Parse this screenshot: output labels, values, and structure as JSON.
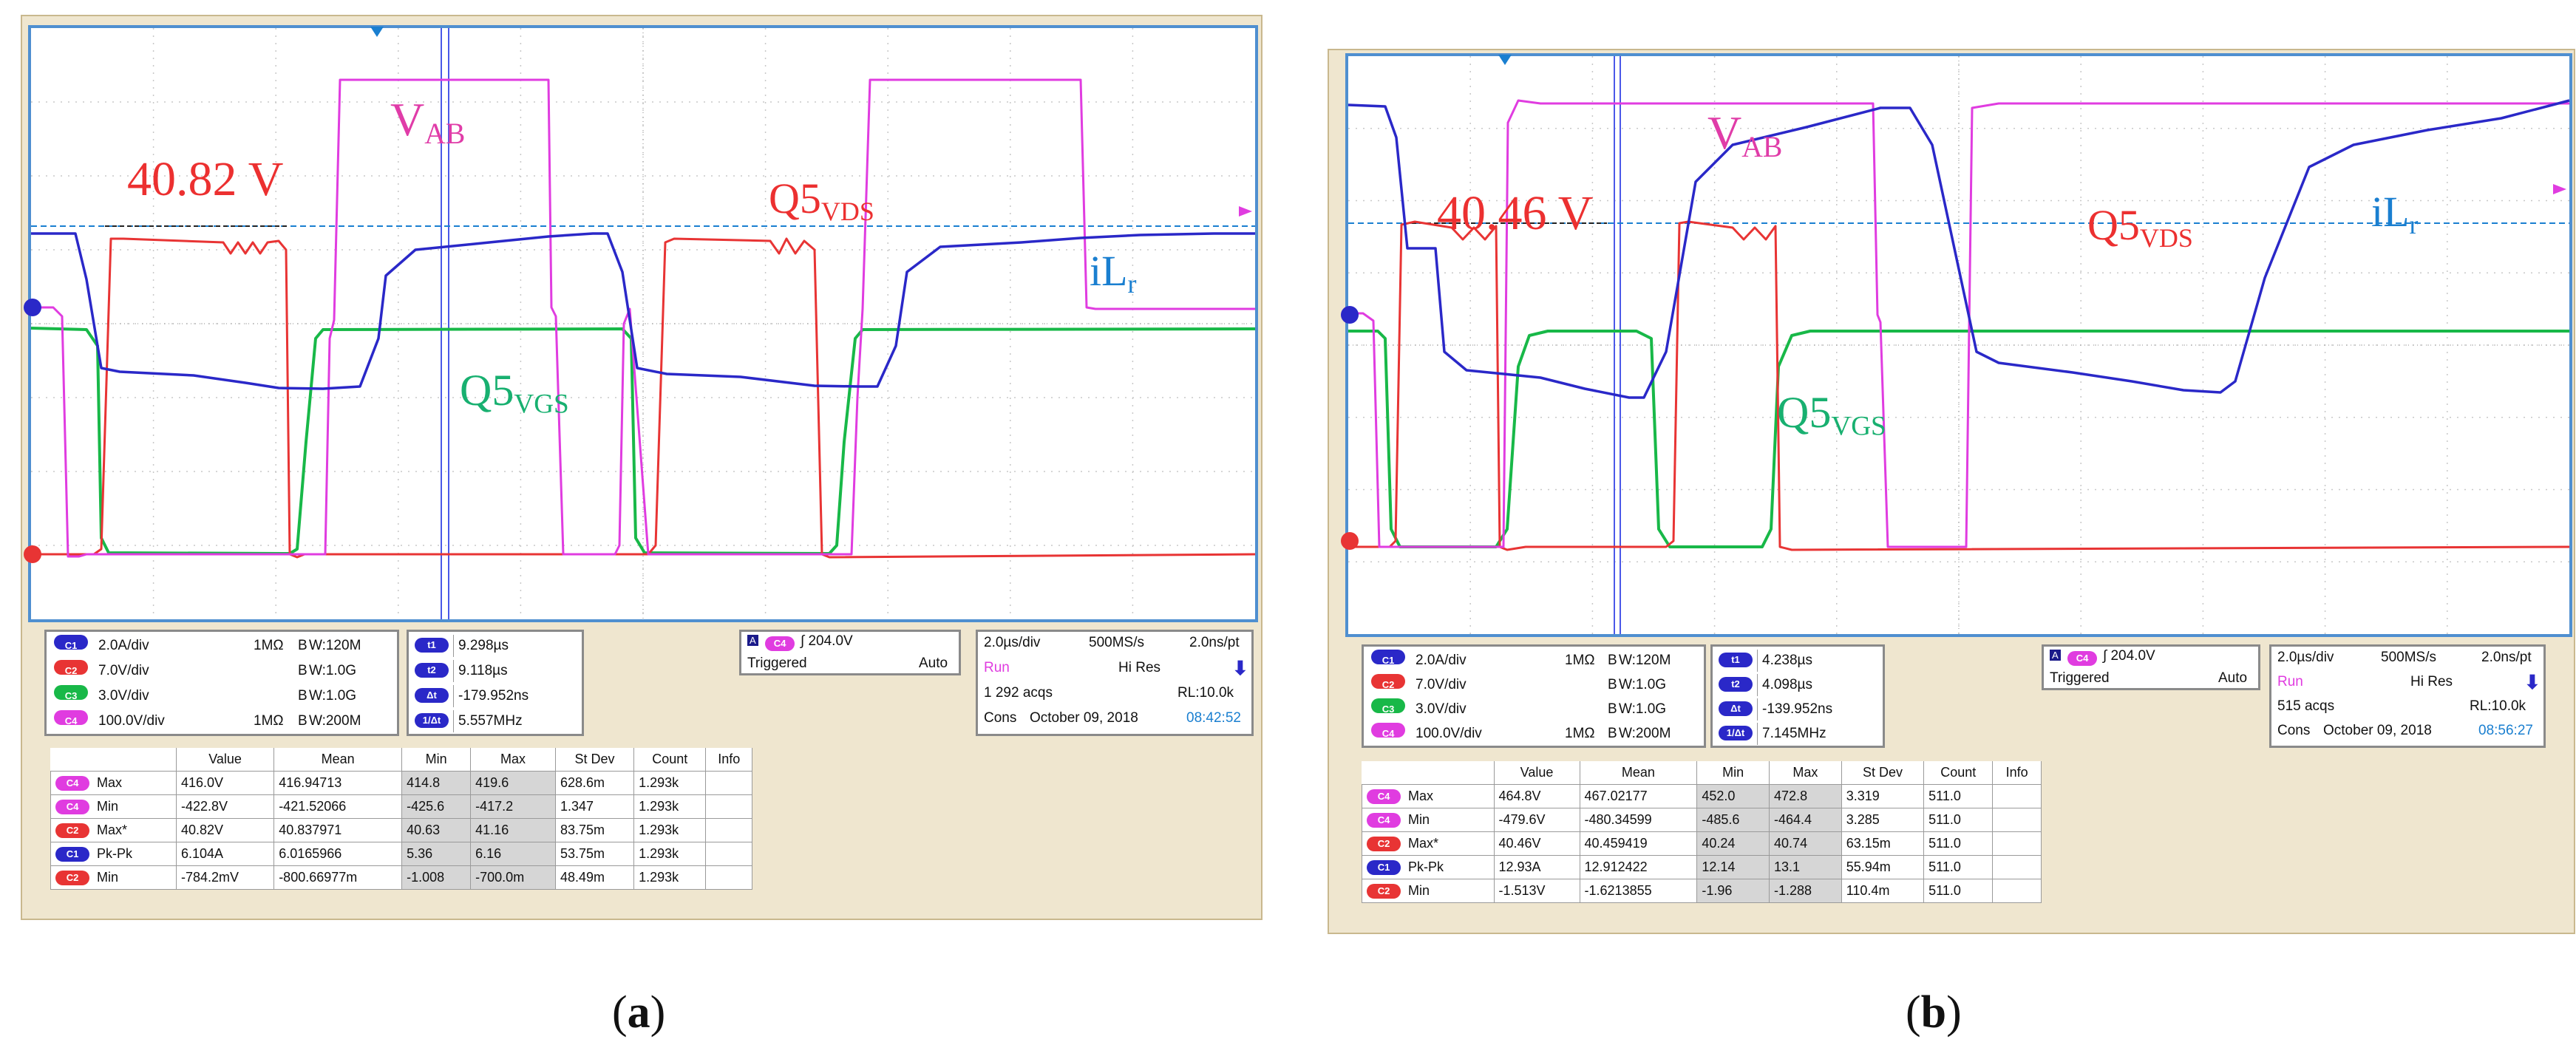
{
  "screenshots": [
    {
      "caption": "a",
      "labels": {
        "vab": "V",
        "vab_sub": "AB",
        "q5vds": "Q5",
        "q5vds_sub": "VDS",
        "ilr": "iL",
        "ilr_sub": "r",
        "q5vgs": "Q5",
        "q5vgs_sub": "VGS"
      },
      "measured_voltage": "40.82 V",
      "channels": [
        {
          "ch": "C1",
          "scale": "2.0A/div",
          "imp": "1MΩ",
          "bw": "W:120M",
          "color": "#2a28c8"
        },
        {
          "ch": "C2",
          "scale": "7.0V/div",
          "imp": "",
          "bw": "W:1.0G",
          "color": "#e83434"
        },
        {
          "ch": "C3",
          "scale": "3.0V/div",
          "imp": "",
          "bw": "W:1.0G",
          "color": "#18b848"
        },
        {
          "ch": "C4",
          "scale": "100.0V/div",
          "imp": "1MΩ",
          "bw": "W:200M",
          "color": "#e03ce0"
        }
      ],
      "cursors": [
        {
          "key": "t1",
          "value": "9.298µs"
        },
        {
          "key": "t2",
          "value": "9.118µs"
        },
        {
          "key": "Δt",
          "value": "-179.952ns"
        },
        {
          "key": "1/Δt",
          "value": "5.557MHz"
        }
      ],
      "trigger": {
        "ch": "C4",
        "level": "204.0V",
        "state": "Triggered",
        "mode": "Auto"
      },
      "timebase": {
        "div": "2.0µs/div",
        "rate": "500MS/s",
        "pt": "2.0ns/pt",
        "status": "Run",
        "res": "Hi Res",
        "acqs": "1 292 acqs",
        "rl": "RL:10.0k",
        "cons": "Cons",
        "date": "October 09, 2018",
        "time": "08:42:52"
      },
      "measurements": {
        "headers": [
          "Value",
          "Mean",
          "Min",
          "Max",
          "St Dev",
          "Count",
          "Info"
        ],
        "rows": [
          {
            "ch": "C4",
            "name": "Max",
            "value": "416.0V",
            "mean": "416.94713",
            "min": "414.8",
            "max": "419.6",
            "stdev": "628.6m",
            "count": "1.293k",
            "info": ""
          },
          {
            "ch": "C4",
            "name": "Min",
            "value": "-422.8V",
            "mean": "-421.52066",
            "min": "-425.6",
            "max": "-417.2",
            "stdev": "1.347",
            "count": "1.293k",
            "info": ""
          },
          {
            "ch": "C2",
            "name": "Max*",
            "value": "40.82V",
            "mean": "40.837971",
            "min": "40.63",
            "max": "41.16",
            "stdev": "83.75m",
            "count": "1.293k",
            "info": ""
          },
          {
            "ch": "C1",
            "name": "Pk-Pk",
            "value": "6.104A",
            "mean": "6.0165966",
            "min": "5.36",
            "max": "6.16",
            "stdev": "53.75m",
            "count": "1.293k",
            "info": ""
          },
          {
            "ch": "C2",
            "name": "Min",
            "value": "-784.2mV",
            "mean": "-800.66977m",
            "min": "-1.008",
            "max": "-700.0m",
            "stdev": "48.49m",
            "count": "1.293k",
            "info": ""
          }
        ]
      }
    },
    {
      "caption": "b",
      "labels": {
        "vab": "V",
        "vab_sub": "AB",
        "q5vds": "Q5",
        "q5vds_sub": "VDS",
        "ilr": "iL",
        "ilr_sub": "r",
        "q5vgs": "Q5",
        "q5vgs_sub": "VGS"
      },
      "measured_voltage": "40.46 V",
      "channels": [
        {
          "ch": "C1",
          "scale": "2.0A/div",
          "imp": "1MΩ",
          "bw": "W:120M",
          "color": "#2a28c8"
        },
        {
          "ch": "C2",
          "scale": "7.0V/div",
          "imp": "",
          "bw": "W:1.0G",
          "color": "#e83434"
        },
        {
          "ch": "C3",
          "scale": "3.0V/div",
          "imp": "",
          "bw": "W:1.0G",
          "color": "#18b848"
        },
        {
          "ch": "C4",
          "scale": "100.0V/div",
          "imp": "1MΩ",
          "bw": "W:200M",
          "color": "#e03ce0"
        }
      ],
      "cursors": [
        {
          "key": "t1",
          "value": "4.238µs"
        },
        {
          "key": "t2",
          "value": "4.098µs"
        },
        {
          "key": "Δt",
          "value": "-139.952ns"
        },
        {
          "key": "1/Δt",
          "value": "7.145MHz"
        }
      ],
      "trigger": {
        "ch": "C4",
        "level": "204.0V",
        "state": "Triggered",
        "mode": "Auto"
      },
      "timebase": {
        "div": "2.0µs/div",
        "rate": "500MS/s",
        "pt": "2.0ns/pt",
        "status": "Run",
        "res": "Hi Res",
        "acqs": "515 acqs",
        "rl": "RL:10.0k",
        "cons": "Cons",
        "date": "October 09, 2018",
        "time": "08:56:27"
      },
      "measurements": {
        "headers": [
          "Value",
          "Mean",
          "Min",
          "Max",
          "St Dev",
          "Count",
          "Info"
        ],
        "rows": [
          {
            "ch": "C4",
            "name": "Max",
            "value": "464.8V",
            "mean": "467.02177",
            "min": "452.0",
            "max": "472.8",
            "stdev": "3.319",
            "count": "511.0",
            "info": ""
          },
          {
            "ch": "C4",
            "name": "Min",
            "value": "-479.6V",
            "mean": "-480.34599",
            "min": "-485.6",
            "max": "-464.4",
            "stdev": "3.285",
            "count": "511.0",
            "info": ""
          },
          {
            "ch": "C2",
            "name": "Max*",
            "value": "40.46V",
            "mean": "40.459419",
            "min": "40.24",
            "max": "40.74",
            "stdev": "63.15m",
            "count": "511.0",
            "info": ""
          },
          {
            "ch": "C1",
            "name": "Pk-Pk",
            "value": "12.93A",
            "mean": "12.912422",
            "min": "12.14",
            "max": "13.1",
            "stdev": "55.94m",
            "count": "511.0",
            "info": ""
          },
          {
            "ch": "C2",
            "name": "Min",
            "value": "-1.513V",
            "mean": "-1.6213855",
            "min": "-1.96",
            "max": "-1.288",
            "stdev": "110.4m",
            "count": "511.0",
            "info": ""
          }
        ]
      }
    }
  ],
  "colors": {
    "ch1": "#2a28c8",
    "ch2": "#e83434",
    "ch3": "#18b848",
    "ch4": "#e03ce0",
    "vab_label": "#e03ca8",
    "q5vds_label": "#ec3030",
    "ilr_label": "#1a7fd0",
    "q5vgs_label": "#18b070",
    "grid": "#c8c8c8",
    "screen_border": "#4f8fd0"
  }
}
